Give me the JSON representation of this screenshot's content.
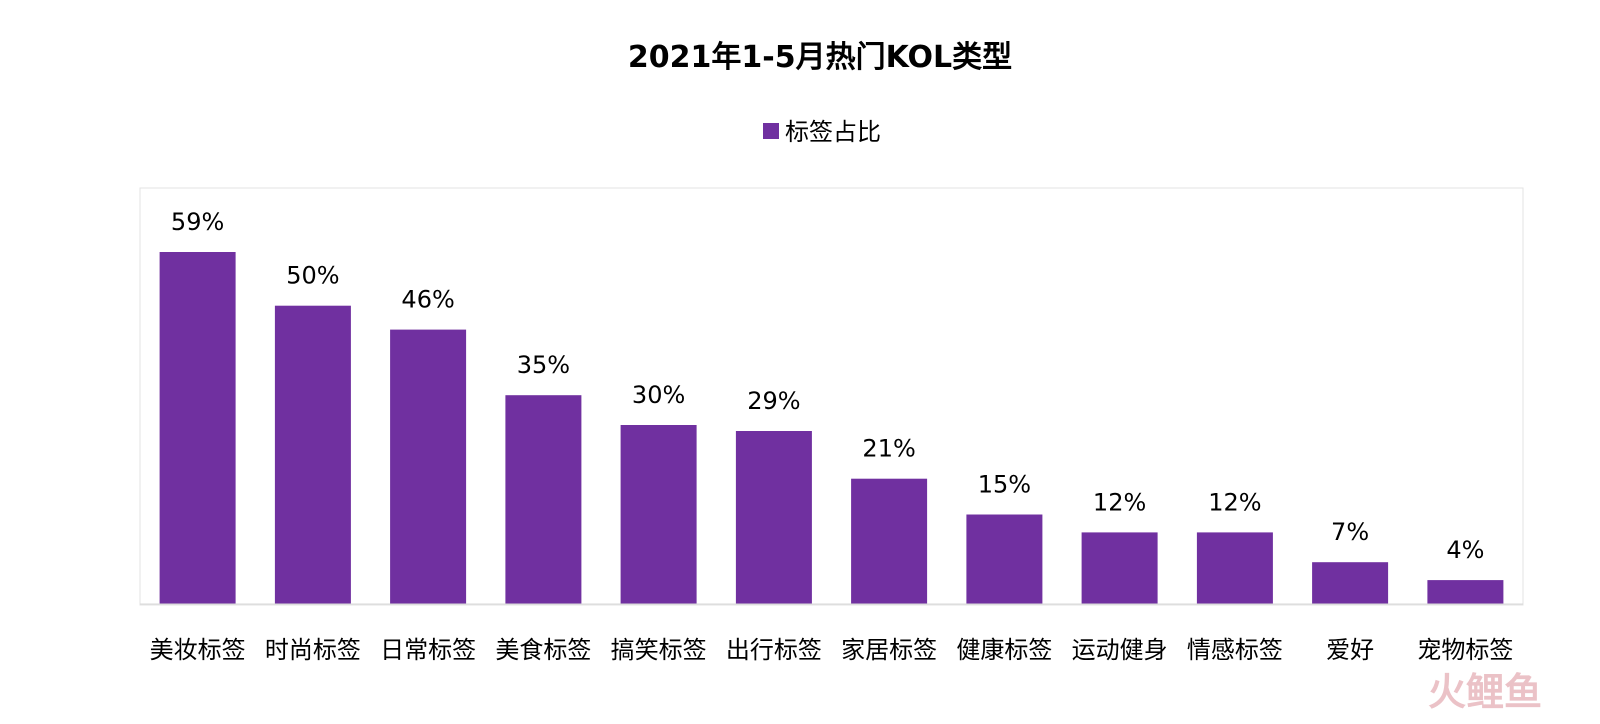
{
  "chart_data": {
    "type": "bar",
    "title": "2021年1-5月热门KOL类型",
    "legend": {
      "position": "top",
      "entries": [
        "标签占比"
      ]
    },
    "series": [
      {
        "name": "标签占比",
        "color": "#7030A0",
        "values": [
          59,
          50,
          46,
          35,
          30,
          29,
          21,
          15,
          12,
          12,
          7,
          4
        ],
        "data_labels": [
          "59%",
          "50%",
          "46%",
          "35%",
          "30%",
          "29%",
          "21%",
          "15%",
          "12%",
          "12%",
          "7%",
          "4%"
        ]
      }
    ],
    "categories": [
      "美妆标签",
      "时尚标签",
      "日常标签",
      "美食标签",
      "搞笑标签",
      "出行标签",
      "家居标签",
      "健康标签",
      "运动健身",
      "情感标签",
      "爱好",
      "宠物标签"
    ],
    "xlabel": "",
    "ylabel": "",
    "ylim": [
      0,
      59
    ],
    "grid": false
  },
  "watermark": {
    "text": "火鲤鱼"
  },
  "colors": {
    "bar": "#7030A0",
    "plot_border": "#D9D9D9",
    "axis": "#D9D9D9",
    "watermark": "#E8B8BE"
  }
}
